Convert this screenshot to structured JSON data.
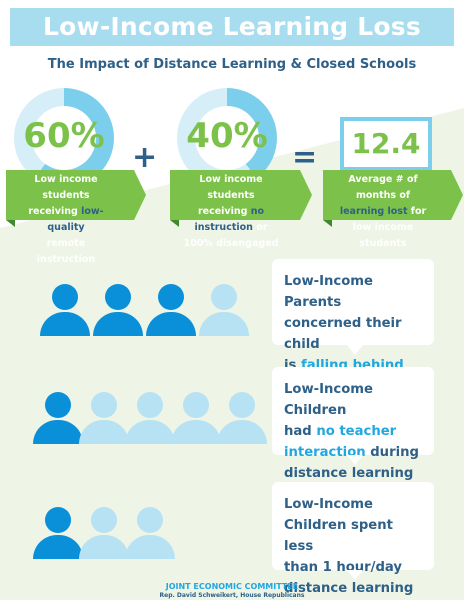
{
  "title": "Low-Income Learning Loss",
  "subtitle": "The Impact of Distance Learning & Closed Schools",
  "stats": [
    {
      "value": "60%",
      "fraction": 0.6,
      "lines": [
        [
          "Low income students"
        ],
        [
          "receiving ",
          "low-quality"
        ],
        [
          "remote instruction"
        ]
      ]
    },
    {
      "value": "40%",
      "fraction": 0.4,
      "lines": [
        [
          "Low income students"
        ],
        [
          "receiving ",
          "no instruction",
          " or"
        ],
        [
          "100% disengaged"
        ]
      ]
    },
    {
      "value": "12.4",
      "lines": [
        [
          "Average # of months of"
        ],
        [
          "learning lost",
          " for low income"
        ],
        [
          "students"
        ]
      ]
    }
  ],
  "operators": {
    "plus": "+",
    "equals": "="
  },
  "rows": [
    {
      "highlighted": 3,
      "total": 4,
      "lines": [
        [
          "Low-Income Parents"
        ],
        [
          "concerned their child"
        ],
        [
          "is ",
          "falling behind"
        ]
      ]
    },
    {
      "highlighted": 1,
      "total": 5,
      "lines": [
        [
          "Low-Income Children"
        ],
        [
          "had ",
          "no teacher"
        ],
        [
          "interaction",
          " during"
        ],
        [
          "distance learning"
        ]
      ]
    },
    {
      "highlighted": 1,
      "total": 3,
      "lines": [
        [
          "Low-Income"
        ],
        [
          "Children spent less"
        ],
        [
          "than 1 hour/day"
        ],
        [
          "distance learning"
        ]
      ]
    }
  ],
  "colors": {
    "green": "#7cc24a",
    "navy": "#2e6088",
    "blue": "#0a8fd9",
    "light_blue": "#b6e2f3",
    "title_bg": "#a8dcef"
  },
  "footer": {
    "org": "JOINT ECONOMIC COMMITTEE",
    "credit": "Rep. David Schweikert, House Republicans"
  }
}
